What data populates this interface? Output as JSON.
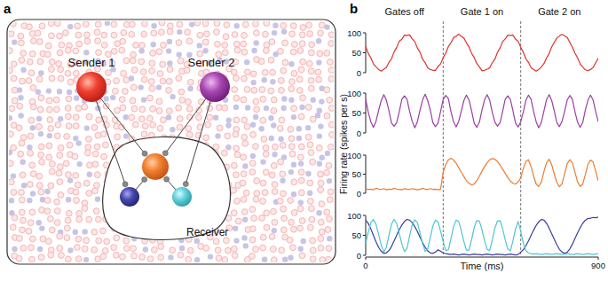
{
  "diagram": {
    "panel_label": "a",
    "nodes": [
      {
        "label": "Sender 1"
      },
      {
        "label": "Sender 2"
      }
    ],
    "receiver": {
      "label": "Receiver"
    }
  },
  "chart_data": {
    "type": "line",
    "panel_label": "b",
    "ylabel": "Firing rate (spikes per s)",
    "xlabel": "Time (ms)",
    "annotations": [
      "Gates off",
      "Gate 1 on",
      "Gate 2 on"
    ],
    "gate_times": [
      300,
      600
    ],
    "xlim": [
      0,
      900
    ],
    "xticks": [
      0,
      900
    ],
    "ylim": [
      0,
      100
    ],
    "yticks": [
      0,
      50,
      100
    ],
    "x": [
      0,
      10,
      20,
      30,
      40,
      50,
      60,
      70,
      80,
      90,
      100,
      110,
      120,
      130,
      140,
      150,
      160,
      170,
      180,
      190,
      200,
      210,
      220,
      230,
      240,
      250,
      260,
      270,
      280,
      290,
      300,
      310,
      320,
      330,
      340,
      350,
      360,
      370,
      380,
      390,
      400,
      410,
      420,
      430,
      440,
      450,
      460,
      470,
      480,
      490,
      500,
      510,
      520,
      530,
      540,
      550,
      560,
      570,
      580,
      590,
      600,
      610,
      620,
      630,
      640,
      650,
      660,
      670,
      680,
      690,
      700,
      710,
      720,
      730,
      740,
      750,
      760,
      770,
      780,
      790,
      800,
      810,
      820,
      830,
      840,
      850,
      860,
      870,
      880,
      890,
      900
    ],
    "series": [
      {
        "color": "#e2302b",
        "values": [
          66,
          48,
          37,
          22,
          15,
          8,
          4,
          9,
          13,
          26,
          35,
          52,
          63,
          79,
          84,
          94,
          93,
          95,
          85,
          78,
          62,
          52,
          34,
          25,
          12,
          8,
          6,
          6,
          16,
          22,
          38,
          49,
          66,
          75,
          88,
          91,
          97,
          91,
          87,
          75,
          65,
          48,
          38,
          23,
          15,
          5,
          6,
          9,
          12,
          25,
          34,
          51,
          62,
          78,
          85,
          94,
          93,
          94,
          84,
          79,
          63,
          51,
          35,
          26,
          13,
          8,
          4,
          8,
          15,
          23,
          37,
          48,
          65,
          76,
          87,
          92,
          96,
          92,
          88,
          76,
          64,
          49,
          37,
          22,
          14,
          7,
          5,
          8,
          13,
          25,
          36
        ]
      },
      {
        "color": "#9a3ea3",
        "values": [
          85,
          52,
          28,
          14,
          29,
          57,
          81,
          96,
          82,
          56,
          25,
          17,
          26,
          53,
          85,
          93,
          84,
          54,
          29,
          13,
          28,
          56,
          82,
          97,
          81,
          57,
          26,
          16,
          25,
          54,
          84,
          94,
          86,
          53,
          28,
          15,
          29,
          55,
          81,
          95,
          83,
          55,
          24,
          14,
          27,
          57,
          83,
          96,
          82,
          52,
          27,
          17,
          26,
          54,
          85,
          93,
          84,
          56,
          25,
          15,
          28,
          53,
          82,
          95,
          85,
          54,
          28,
          13,
          27,
          56,
          84,
          96,
          81,
          55,
          26,
          16,
          29,
          55,
          83,
          94,
          84,
          53,
          27,
          14,
          26,
          57,
          82,
          95,
          83,
          54,
          28
        ]
      },
      {
        "color": "#ef7a2b",
        "values": [
          12,
          10,
          11,
          9,
          13,
          11,
          10,
          12,
          9,
          11,
          10,
          13,
          11,
          10,
          9,
          12,
          11,
          10,
          12,
          11,
          9,
          10,
          13,
          11,
          10,
          12,
          10,
          11,
          9,
          11,
          55,
          75,
          88,
          92,
          87,
          79,
          67,
          55,
          44,
          33,
          26,
          22,
          24,
          33,
          45,
          58,
          70,
          80,
          88,
          91,
          89,
          83,
          74,
          63,
          52,
          41,
          32,
          26,
          24,
          30,
          40,
          65,
          84,
          88,
          70,
          45,
          24,
          18,
          30,
          58,
          80,
          89,
          75,
          50,
          28,
          17,
          25,
          52,
          78,
          88,
          80,
          55,
          30,
          18,
          24,
          48,
          76,
          87,
          82,
          58,
          33
        ]
      },
      {
        "color": "#3b3d9c",
        "values": [
          88,
          80,
          66,
          50,
          34,
          20,
          10,
          5,
          6,
          12,
          22,
          36,
          50,
          64,
          76,
          85,
          90,
          88,
          82,
          72,
          60,
          46,
          32,
          20,
          11,
          6,
          5,
          8,
          14,
          10,
          6,
          4,
          3,
          2,
          3,
          2,
          1,
          2,
          3,
          2,
          1,
          2,
          3,
          2,
          2,
          1,
          2,
          3,
          2,
          1,
          2,
          3,
          2,
          2,
          1,
          2,
          3,
          2,
          1,
          2,
          8,
          14,
          24,
          36,
          50,
          63,
          75,
          84,
          90,
          88,
          80,
          68,
          54,
          40,
          26,
          15,
          8,
          5,
          8,
          16,
          28,
          42,
          56,
          69,
          80,
          88,
          92,
          93,
          95,
          94,
          96
        ]
      },
      {
        "color": "#4cc6d2",
        "values": [
          30,
          58,
          82,
          90,
          78,
          52,
          26,
          8,
          20,
          50,
          78,
          90,
          80,
          55,
          28,
          9,
          18,
          48,
          76,
          89,
          82,
          57,
          30,
          10,
          16,
          45,
          74,
          88,
          84,
          60,
          34,
          12,
          14,
          42,
          72,
          88,
          85,
          62,
          35,
          13,
          13,
          40,
          70,
          87,
          86,
          64,
          37,
          15,
          12,
          38,
          68,
          86,
          87,
          66,
          39,
          16,
          11,
          36,
          66,
          85,
          60,
          30,
          12,
          6,
          4,
          3,
          4,
          3,
          2,
          3,
          4,
          3,
          2,
          3,
          4,
          3,
          2,
          3,
          4,
          3,
          2,
          3,
          4,
          3,
          2,
          3,
          4,
          3,
          2,
          3,
          4
        ]
      }
    ]
  }
}
